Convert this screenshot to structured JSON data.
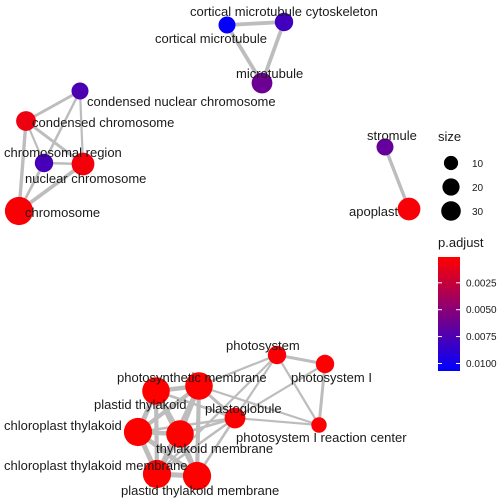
{
  "chart_data": {
    "type": "network",
    "title": "",
    "nodes": [
      {
        "id": "cortical microtubule cytoskeleton",
        "size": 6,
        "p_adjust": 0.0105
      },
      {
        "id": "cortical microtubule",
        "size": 8,
        "p_adjust": 0.008
      },
      {
        "id": "microtubule",
        "size": 12,
        "p_adjust": 0.0062
      },
      {
        "id": "condensed nuclear chromosome",
        "size": 6,
        "p_adjust": 0.0075
      },
      {
        "id": "condensed chromosome",
        "size": 10,
        "p_adjust": 0.0008
      },
      {
        "id": "chromosomal region",
        "size": 8,
        "p_adjust": 0.0078
      },
      {
        "id": "nuclear chromosome",
        "size": 16,
        "p_adjust": 0.0005
      },
      {
        "id": "chromosome",
        "size": 30,
        "p_adjust": 0.0003
      },
      {
        "id": "stromule",
        "size": 6,
        "p_adjust": 0.0065
      },
      {
        "id": "apoplast",
        "size": 16,
        "p_adjust": 0.0004
      },
      {
        "id": "photosystem",
        "size": 8,
        "p_adjust": 0.0003
      },
      {
        "id": "photosystem I",
        "size": 8,
        "p_adjust": 0.0002
      },
      {
        "id": "photosystem I reaction center",
        "size": 4,
        "p_adjust": 0.0002
      },
      {
        "id": "plastoglobule",
        "size": 12,
        "p_adjust": 0.0002
      },
      {
        "id": "photosynthetic membrane",
        "size": 28,
        "p_adjust": 0.0001
      },
      {
        "id": "plastid thylakoid",
        "size": 28,
        "p_adjust": 0.0001
      },
      {
        "id": "chloroplast thylakoid",
        "size": 30,
        "p_adjust": 0.0001
      },
      {
        "id": "thylakoid membrane",
        "size": 28,
        "p_adjust": 0.0001
      },
      {
        "id": "chloroplast thylakoid membrane",
        "size": 30,
        "p_adjust": 0.0001
      },
      {
        "id": "plastid thylakoid membrane",
        "size": 30,
        "p_adjust": 0.0001
      }
    ],
    "edges": [
      {
        "source": "cortical microtubule cytoskeleton",
        "target": "cortical microtubule",
        "weight": 0.7
      },
      {
        "source": "cortical microtubule cytoskeleton",
        "target": "microtubule",
        "weight": 0.7
      },
      {
        "source": "cortical microtubule",
        "target": "microtubule",
        "weight": 0.7
      },
      {
        "source": "condensed nuclear chromosome",
        "target": "condensed chromosome",
        "weight": 0.5
      },
      {
        "source": "condensed nuclear chromosome",
        "target": "chromosomal region",
        "weight": 0.3
      },
      {
        "source": "condensed nuclear chromosome",
        "target": "nuclear chromosome",
        "weight": 0.3
      },
      {
        "source": "condensed nuclear chromosome",
        "target": "chromosome",
        "weight": 0.3
      },
      {
        "source": "condensed chromosome",
        "target": "chromosomal region",
        "weight": 0.3
      },
      {
        "source": "condensed chromosome",
        "target": "nuclear chromosome",
        "weight": 0.5
      },
      {
        "source": "condensed chromosome",
        "target": "chromosome",
        "weight": 0.6
      },
      {
        "source": "chromosomal region",
        "target": "nuclear chromosome",
        "weight": 0.4
      },
      {
        "source": "chromosomal region",
        "target": "chromosome",
        "weight": 0.4
      },
      {
        "source": "nuclear chromosome",
        "target": "chromosome",
        "weight": 0.7
      },
      {
        "source": "stromule",
        "target": "apoplast",
        "weight": 0.6
      },
      {
        "source": "photosystem",
        "target": "photosystem I",
        "weight": 0.5
      },
      {
        "source": "photosystem",
        "target": "photosystem I reaction center",
        "weight": 0.3
      },
      {
        "source": "photosystem I",
        "target": "photosystem I reaction center",
        "weight": 0.5
      },
      {
        "source": "photosystem",
        "target": "plastoglobule",
        "weight": 0.3
      },
      {
        "source": "photosystem",
        "target": "photosynthetic membrane",
        "weight": 0.3
      },
      {
        "source": "plastoglobule",
        "target": "photosystem I reaction center",
        "weight": 0.3
      },
      {
        "source": "plastoglobule",
        "target": "photosystem I",
        "weight": 0.3
      },
      {
        "source": "plastoglobule",
        "target": "photosynthetic membrane",
        "weight": 0.5
      },
      {
        "source": "plastoglobule",
        "target": "plastid thylakoid",
        "weight": 0.4
      },
      {
        "source": "plastoglobule",
        "target": "thylakoid membrane",
        "weight": 0.4
      },
      {
        "source": "plastoglobule",
        "target": "chloroplast thylakoid membrane",
        "weight": 0.4
      },
      {
        "source": "plastoglobule",
        "target": "plastid thylakoid membrane",
        "weight": 0.4
      },
      {
        "source": "plastoglobule",
        "target": "chloroplast thylakoid",
        "weight": 0.4
      },
      {
        "source": "photosynthetic membrane",
        "target": "plastid thylakoid",
        "weight": 0.9
      },
      {
        "source": "photosynthetic membrane",
        "target": "chloroplast thylakoid",
        "weight": 0.8
      },
      {
        "source": "photosynthetic membrane",
        "target": "thylakoid membrane",
        "weight": 0.9
      },
      {
        "source": "photosynthetic membrane",
        "target": "chloroplast thylakoid membrane",
        "weight": 0.8
      },
      {
        "source": "photosynthetic membrane",
        "target": "plastid thylakoid membrane",
        "weight": 0.8
      },
      {
        "source": "plastid thylakoid",
        "target": "chloroplast thylakoid",
        "weight": 1.0
      },
      {
        "source": "plastid thylakoid",
        "target": "thylakoid membrane",
        "weight": 0.9
      },
      {
        "source": "plastid thylakoid",
        "target": "chloroplast thylakoid membrane",
        "weight": 0.8
      },
      {
        "source": "plastid thylakoid",
        "target": "plastid thylakoid membrane",
        "weight": 0.8
      },
      {
        "source": "chloroplast thylakoid",
        "target": "thylakoid membrane",
        "weight": 0.9
      },
      {
        "source": "chloroplast thylakoid",
        "target": "chloroplast thylakoid membrane",
        "weight": 1.0
      },
      {
        "source": "chloroplast thylakoid",
        "target": "plastid thylakoid membrane",
        "weight": 0.9
      },
      {
        "source": "thylakoid membrane",
        "target": "chloroplast thylakoid membrane",
        "weight": 1.0
      },
      {
        "source": "thylakoid membrane",
        "target": "plastid thylakoid membrane",
        "weight": 1.0
      },
      {
        "source": "chloroplast thylakoid membrane",
        "target": "plastid thylakoid membrane",
        "weight": 1.0
      },
      {
        "source": "photosynthetic membrane",
        "target": "photosystem I reaction center",
        "weight": 0.3
      },
      {
        "source": "chloroplast thylakoid membrane",
        "target": "photosystem",
        "weight": 0.3
      }
    ],
    "legend_size": {
      "title": "size",
      "values": [
        10,
        20,
        30
      ]
    },
    "legend_color": {
      "title": "p.adjust",
      "breaks": [
        0.0025,
        0.005,
        0.0075,
        0.01
      ],
      "break_labels": [
        "0.0025",
        "0.0050",
        "0.0075",
        "0.0100"
      ],
      "range": [
        0.0001,
        0.0107
      ],
      "colors": {
        "low": "#ff0000",
        "high": "#0000ff"
      }
    }
  }
}
